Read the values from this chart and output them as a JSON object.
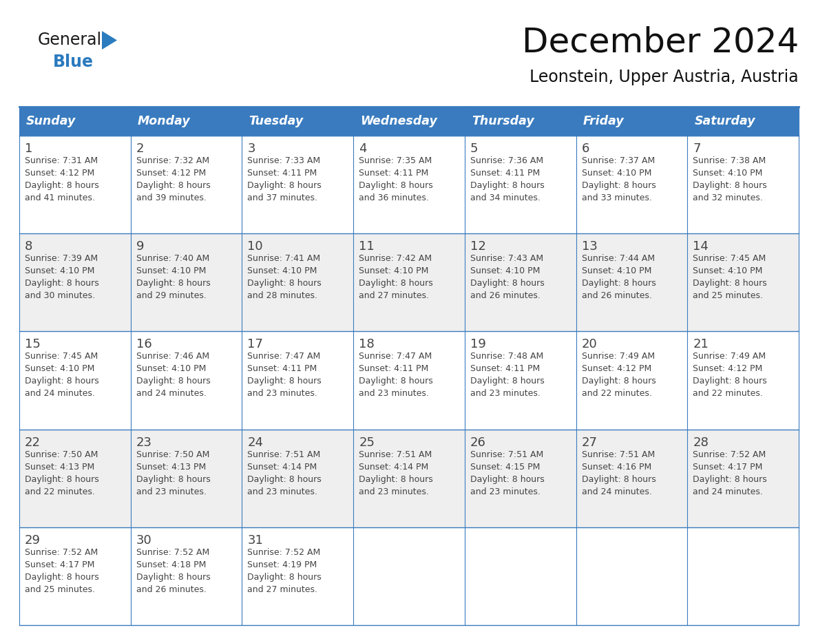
{
  "title": "December 2024",
  "subtitle": "Leonstein, Upper Austria, Austria",
  "header_color": "#3a7bbf",
  "header_text_color": "#ffffff",
  "row_bg_even": "#ffffff",
  "row_bg_odd": "#efefef",
  "grid_color": "#3a7bbf",
  "text_color": "#444444",
  "days_of_week": [
    "Sunday",
    "Monday",
    "Tuesday",
    "Wednesday",
    "Thursday",
    "Friday",
    "Saturday"
  ],
  "weeks": [
    [
      {
        "day": 1,
        "sunrise": "7:31 AM",
        "sunset": "4:12 PM",
        "daylight": "8 hours",
        "daylight2": "and 41 minutes."
      },
      {
        "day": 2,
        "sunrise": "7:32 AM",
        "sunset": "4:12 PM",
        "daylight": "8 hours",
        "daylight2": "and 39 minutes."
      },
      {
        "day": 3,
        "sunrise": "7:33 AM",
        "sunset": "4:11 PM",
        "daylight": "8 hours",
        "daylight2": "and 37 minutes."
      },
      {
        "day": 4,
        "sunrise": "7:35 AM",
        "sunset": "4:11 PM",
        "daylight": "8 hours",
        "daylight2": "and 36 minutes."
      },
      {
        "day": 5,
        "sunrise": "7:36 AM",
        "sunset": "4:11 PM",
        "daylight": "8 hours",
        "daylight2": "and 34 minutes."
      },
      {
        "day": 6,
        "sunrise": "7:37 AM",
        "sunset": "4:10 PM",
        "daylight": "8 hours",
        "daylight2": "and 33 minutes."
      },
      {
        "day": 7,
        "sunrise": "7:38 AM",
        "sunset": "4:10 PM",
        "daylight": "8 hours",
        "daylight2": "and 32 minutes."
      }
    ],
    [
      {
        "day": 8,
        "sunrise": "7:39 AM",
        "sunset": "4:10 PM",
        "daylight": "8 hours",
        "daylight2": "and 30 minutes."
      },
      {
        "day": 9,
        "sunrise": "7:40 AM",
        "sunset": "4:10 PM",
        "daylight": "8 hours",
        "daylight2": "and 29 minutes."
      },
      {
        "day": 10,
        "sunrise": "7:41 AM",
        "sunset": "4:10 PM",
        "daylight": "8 hours",
        "daylight2": "and 28 minutes."
      },
      {
        "day": 11,
        "sunrise": "7:42 AM",
        "sunset": "4:10 PM",
        "daylight": "8 hours",
        "daylight2": "and 27 minutes."
      },
      {
        "day": 12,
        "sunrise": "7:43 AM",
        "sunset": "4:10 PM",
        "daylight": "8 hours",
        "daylight2": "and 26 minutes."
      },
      {
        "day": 13,
        "sunrise": "7:44 AM",
        "sunset": "4:10 PM",
        "daylight": "8 hours",
        "daylight2": "and 26 minutes."
      },
      {
        "day": 14,
        "sunrise": "7:45 AM",
        "sunset": "4:10 PM",
        "daylight": "8 hours",
        "daylight2": "and 25 minutes."
      }
    ],
    [
      {
        "day": 15,
        "sunrise": "7:45 AM",
        "sunset": "4:10 PM",
        "daylight": "8 hours",
        "daylight2": "and 24 minutes."
      },
      {
        "day": 16,
        "sunrise": "7:46 AM",
        "sunset": "4:10 PM",
        "daylight": "8 hours",
        "daylight2": "and 24 minutes."
      },
      {
        "day": 17,
        "sunrise": "7:47 AM",
        "sunset": "4:11 PM",
        "daylight": "8 hours",
        "daylight2": "and 23 minutes."
      },
      {
        "day": 18,
        "sunrise": "7:47 AM",
        "sunset": "4:11 PM",
        "daylight": "8 hours",
        "daylight2": "and 23 minutes."
      },
      {
        "day": 19,
        "sunrise": "7:48 AM",
        "sunset": "4:11 PM",
        "daylight": "8 hours",
        "daylight2": "and 23 minutes."
      },
      {
        "day": 20,
        "sunrise": "7:49 AM",
        "sunset": "4:12 PM",
        "daylight": "8 hours",
        "daylight2": "and 22 minutes."
      },
      {
        "day": 21,
        "sunrise": "7:49 AM",
        "sunset": "4:12 PM",
        "daylight": "8 hours",
        "daylight2": "and 22 minutes."
      }
    ],
    [
      {
        "day": 22,
        "sunrise": "7:50 AM",
        "sunset": "4:13 PM",
        "daylight": "8 hours",
        "daylight2": "and 22 minutes."
      },
      {
        "day": 23,
        "sunrise": "7:50 AM",
        "sunset": "4:13 PM",
        "daylight": "8 hours",
        "daylight2": "and 23 minutes."
      },
      {
        "day": 24,
        "sunrise": "7:51 AM",
        "sunset": "4:14 PM",
        "daylight": "8 hours",
        "daylight2": "and 23 minutes."
      },
      {
        "day": 25,
        "sunrise": "7:51 AM",
        "sunset": "4:14 PM",
        "daylight": "8 hours",
        "daylight2": "and 23 minutes."
      },
      {
        "day": 26,
        "sunrise": "7:51 AM",
        "sunset": "4:15 PM",
        "daylight": "8 hours",
        "daylight2": "and 23 minutes."
      },
      {
        "day": 27,
        "sunrise": "7:51 AM",
        "sunset": "4:16 PM",
        "daylight": "8 hours",
        "daylight2": "and 24 minutes."
      },
      {
        "day": 28,
        "sunrise": "7:52 AM",
        "sunset": "4:17 PM",
        "daylight": "8 hours",
        "daylight2": "and 24 minutes."
      }
    ],
    [
      {
        "day": 29,
        "sunrise": "7:52 AM",
        "sunset": "4:17 PM",
        "daylight": "8 hours",
        "daylight2": "and 25 minutes."
      },
      {
        "day": 30,
        "sunrise": "7:52 AM",
        "sunset": "4:18 PM",
        "daylight": "8 hours",
        "daylight2": "and 26 minutes."
      },
      {
        "day": 31,
        "sunrise": "7:52 AM",
        "sunset": "4:19 PM",
        "daylight": "8 hours",
        "daylight2": "and 27 minutes."
      },
      null,
      null,
      null,
      null
    ]
  ],
  "logo_text_general": "General",
  "logo_text_blue": "Blue",
  "logo_color_general": "#1a1a1a",
  "logo_color_blue": "#2b7bbf",
  "logo_triangle_color": "#2b7bbf"
}
